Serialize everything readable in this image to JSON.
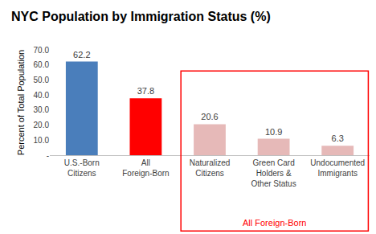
{
  "chart_data": {
    "type": "bar",
    "title": "NYC Population by Immigration Status (%)",
    "y_label": "Percent of Total Population",
    "categories": [
      "U.S.-Born Citizens",
      "All Foreign-Born",
      "Naturalized Citizens",
      "Green Card Holders & Other Status",
      "Undocumented Immigrants"
    ],
    "values": [
      62.2,
      37.8,
      20.6,
      10.9,
      6.3
    ],
    "colors": [
      "#4a7ebb",
      "#ff0000",
      "#e6b9b8",
      "#e6b9b8",
      "#e6b9b8"
    ],
    "ylim": [
      0,
      70
    ],
    "yticks": [
      {
        "value": 0,
        "label": "-"
      },
      {
        "value": 10,
        "label": "10.0"
      },
      {
        "value": 20,
        "label": "20.0"
      },
      {
        "value": 30,
        "label": "30.0"
      },
      {
        "value": 40,
        "label": "40.0"
      },
      {
        "value": 50,
        "label": "50.0"
      },
      {
        "value": 60,
        "label": "60.0"
      },
      {
        "value": 70,
        "label": "70.0"
      }
    ],
    "grid": false,
    "data_labels": true,
    "annotations": [
      "All Foreign-Born"
    ]
  }
}
